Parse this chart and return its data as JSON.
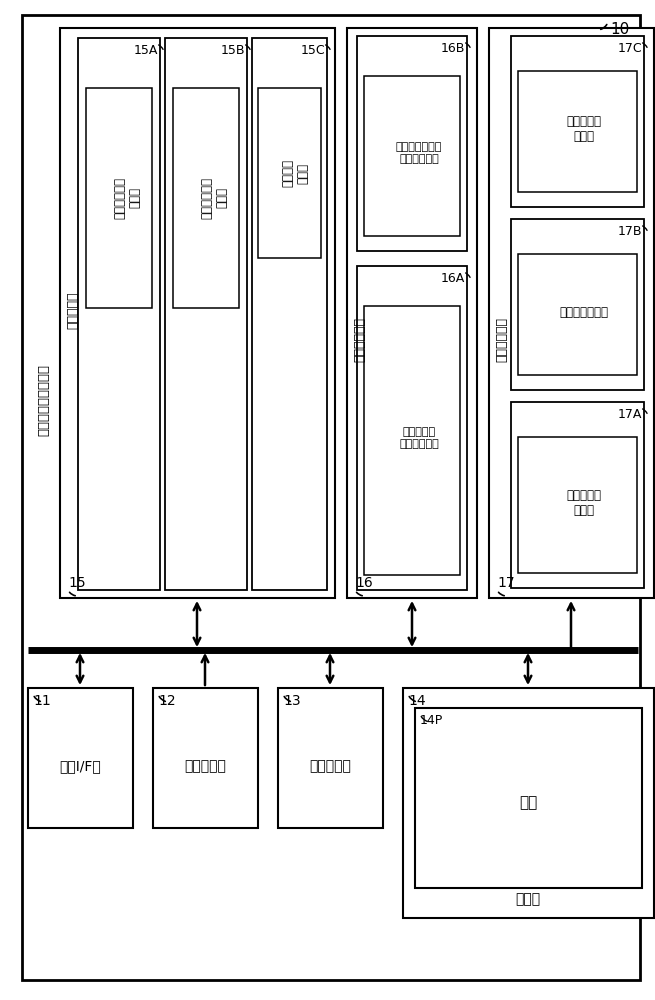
{
  "bg_color": "#ffffff",
  "title_10": "10",
  "title_vertical": "能源削减量预测装置",
  "label_15": "15",
  "label_16": "16",
  "label_17": "17",
  "text_15_vert": "数据取得部",
  "text_16_vert": "需求量预测部",
  "text_17_vert": "削减量预测部",
  "label_15A": "15A",
  "label_15B": "15B",
  "label_15C": "15C",
  "label_16A": "16A",
  "label_16B": "16B",
  "label_17A": "17A",
  "label_17B": "17B",
  "label_17C": "17C",
  "text_15A": "通常运转条件\n取得部",
  "text_15B": "削减运转条件\n取得部",
  "text_15C": "环境数据\n取得部",
  "text_16A": "模拟运算部\n（模拟模型）",
  "text_16B": "数据模型运算部\n（数据模型）",
  "text_17A": "暂定削减量\n算出部",
  "text_17B": "调整系数算出部",
  "text_17C": "预测削减量\n算出部",
  "label_11": "11",
  "label_12": "12",
  "label_13": "13",
  "label_14": "14",
  "label_14P": "14P",
  "text_11": "通信I/F部",
  "text_12": "操作输入部",
  "text_13": "画面显示部",
  "text_14": "存储部",
  "text_14P": "程序"
}
